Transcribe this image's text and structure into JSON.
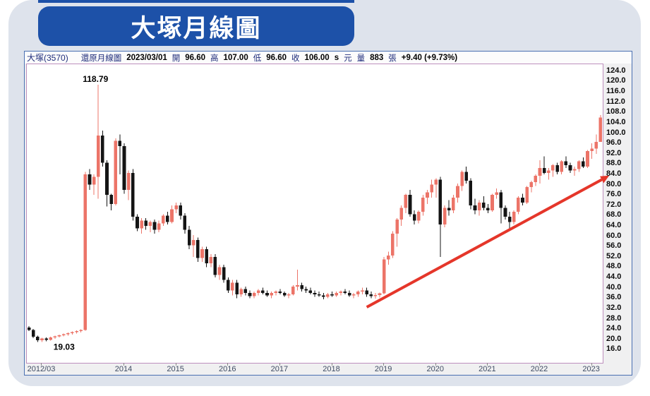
{
  "title": "大塚月線圖",
  "info_bar": {
    "stock": "大塚(3570)",
    "chart_type": "還原月線圖",
    "date": "2023/03/01",
    "open_label": "開",
    "open": "96.60",
    "high_label": "高",
    "high": "107.00",
    "low_label": "低",
    "low": "96.60",
    "close_label": "收",
    "close": "106.00",
    "close_flag": "s",
    "currency_label": "元",
    "volume_label": "量",
    "volume": "883",
    "volume_unit": "張",
    "change": "+9.40 (+9.73%)"
  },
  "chart_data": {
    "type": "candlestick",
    "title": "大塚(3570) 還原月線圖",
    "ylim": [
      10.9,
      126.7
    ],
    "grid": false,
    "colors": {
      "up": "#ec7468",
      "down": "#141414",
      "trend": "#e5362a"
    },
    "y_axis": {
      "labels": [
        "124.0",
        "120.0",
        "116.0",
        "112.0",
        "108.0",
        "104.0",
        "100.0",
        "96.0",
        "92.0",
        "88.0",
        "84.0",
        "80.0",
        "76.0",
        "72.0",
        "68.0",
        "64.0",
        "60.0",
        "56.0",
        "52.0",
        "48.0",
        "44.0",
        "40.0",
        "36.0",
        "32.0",
        "28.0",
        "24.0",
        "20.0",
        "16.0"
      ]
    },
    "x_axis": [
      {
        "label": "2012/03",
        "index": 3
      },
      {
        "label": "2014",
        "index": 22
      },
      {
        "label": "2015",
        "index": 34
      },
      {
        "label": "2016",
        "index": 46
      },
      {
        "label": "2017",
        "index": 58
      },
      {
        "label": "2018",
        "index": 70
      },
      {
        "label": "2019",
        "index": 82
      },
      {
        "label": "2020",
        "index": 94
      },
      {
        "label": "2021",
        "index": 106
      },
      {
        "label": "2022",
        "index": 118
      },
      {
        "label": "2023",
        "index": 130
      }
    ],
    "annotations": [
      {
        "text": "118.79",
        "index": 16,
        "price": 118.79,
        "position": "above",
        "anchor": "middle"
      },
      {
        "text": "19.03",
        "index": 5,
        "price": 19.03,
        "position": "below",
        "anchor": "start"
      }
    ],
    "trendline": {
      "from_index": 78,
      "from_price": 32.5,
      "to_index": 134,
      "to_price": 83.5,
      "width": 4,
      "arrow": true
    },
    "candles": [
      [
        "2012/03",
        24.6,
        25.2,
        23.2,
        23.6
      ],
      [
        "2012/04",
        23.6,
        24.0,
        20.5,
        21.0
      ],
      [
        "2012/05",
        21.0,
        21.5,
        19.03,
        19.6
      ],
      [
        "2012/06",
        19.6,
        20.6,
        19.0,
        20.3
      ],
      [
        "2012/07",
        20.3,
        20.8,
        19.3,
        19.8
      ],
      [
        "2012/08",
        19.8,
        21.0,
        19.5,
        20.7
      ],
      [
        "2012/09",
        20.7,
        21.5,
        20.2,
        21.2
      ],
      [
        "2012/10",
        21.2,
        21.9,
        20.7,
        21.6
      ],
      [
        "2012/11",
        21.6,
        22.3,
        21.1,
        22.0
      ],
      [
        "2012/12",
        22.0,
        22.7,
        21.5,
        22.4
      ],
      [
        "2013/01",
        22.4,
        23.1,
        21.9,
        22.8
      ],
      [
        "2013/02",
        22.8,
        23.5,
        22.3,
        23.2
      ],
      [
        "2013/03",
        23.2,
        23.9,
        22.7,
        23.6
      ],
      [
        "2013/04",
        23.6,
        85.0,
        23.3,
        84.0
      ],
      [
        "2013/05",
        84.0,
        86.0,
        78.0,
        80.0
      ],
      [
        "2013/06",
        80.0,
        84.0,
        76.0,
        83.0
      ],
      [
        "2013/07",
        83.0,
        118.79,
        74.5,
        99.0
      ],
      [
        "2013/08",
        99.0,
        101.0,
        87.0,
        88.5
      ],
      [
        "2013/09",
        88.5,
        89.5,
        71.5,
        76.0
      ],
      [
        "2013/10",
        76.0,
        76.5,
        70.0,
        72.5
      ],
      [
        "2013/11",
        72.5,
        98.0,
        72.0,
        97.0
      ],
      [
        "2013/12",
        97.0,
        99.5,
        84.0,
        95.0
      ],
      [
        "2014/01",
        95.0,
        96.0,
        76.5,
        78.0
      ],
      [
        "2014/02",
        78.0,
        85.5,
        74.0,
        84.5
      ],
      [
        "2014/03",
        84.5,
        86.0,
        66.0,
        67.5
      ],
      [
        "2014/04",
        67.5,
        68.5,
        62.0,
        63.0
      ],
      [
        "2014/05",
        63.0,
        67.0,
        61.0,
        66.0
      ],
      [
        "2014/06",
        66.0,
        67.0,
        62.5,
        64.0
      ],
      [
        "2014/07",
        64.0,
        66.0,
        61.5,
        65.5
      ],
      [
        "2014/08",
        65.5,
        66.5,
        61.0,
        62.5
      ],
      [
        "2014/09",
        62.5,
        66.0,
        61.5,
        65.0
      ],
      [
        "2014/10",
        65.0,
        68.5,
        64.0,
        68.0
      ],
      [
        "2014/11",
        68.0,
        69.5,
        64.5,
        65.5
      ],
      [
        "2014/12",
        65.5,
        72.0,
        65.0,
        70.5
      ],
      [
        "2015/01",
        70.5,
        73.0,
        69.0,
        72.0
      ],
      [
        "2015/02",
        72.0,
        73.0,
        66.5,
        68.0
      ],
      [
        "2015/03",
        68.0,
        69.0,
        61.0,
        62.5
      ],
      [
        "2015/04",
        62.5,
        64.0,
        55.0,
        56.5
      ],
      [
        "2015/05",
        56.5,
        60.5,
        52.0,
        58.5
      ],
      [
        "2015/06",
        58.5,
        59.5,
        50.0,
        51.5
      ],
      [
        "2015/07",
        51.5,
        56.0,
        50.0,
        55.0
      ],
      [
        "2015/08",
        55.0,
        56.0,
        48.0,
        49.5
      ],
      [
        "2015/09",
        49.5,
        53.0,
        48.0,
        52.0
      ],
      [
        "2015/10",
        52.0,
        53.0,
        44.0,
        45.0
      ],
      [
        "2015/11",
        45.0,
        49.0,
        43.0,
        48.0
      ],
      [
        "2015/12",
        48.0,
        49.0,
        42.0,
        43.0
      ],
      [
        "2016/01",
        43.0,
        44.0,
        38.0,
        39.0
      ],
      [
        "2016/02",
        39.0,
        43.0,
        37.0,
        42.0
      ],
      [
        "2016/03",
        42.0,
        43.0,
        36.0,
        37.5
      ],
      [
        "2016/04",
        37.5,
        40.0,
        36.5,
        39.5
      ],
      [
        "2016/05",
        39.5,
        40.5,
        37.0,
        38.0
      ],
      [
        "2016/06",
        38.0,
        39.0,
        36.0,
        36.8
      ],
      [
        "2016/07",
        36.8,
        38.5,
        36.0,
        38.0
      ],
      [
        "2016/08",
        38.0,
        39.5,
        37.0,
        39.0
      ],
      [
        "2016/09",
        39.0,
        40.0,
        37.5,
        38.0
      ],
      [
        "2016/10",
        38.0,
        39.0,
        36.5,
        37.0
      ],
      [
        "2016/11",
        37.0,
        38.5,
        36.0,
        38.0
      ],
      [
        "2016/12",
        38.0,
        39.0,
        37.0,
        38.5
      ],
      [
        "2017/01",
        38.5,
        39.5,
        37.5,
        38.0
      ],
      [
        "2017/02",
        38.0,
        38.5,
        36.5,
        37.0
      ],
      [
        "2017/03",
        37.0,
        38.0,
        36.0,
        37.5
      ],
      [
        "2017/04",
        37.5,
        41.0,
        37.0,
        40.5
      ],
      [
        "2017/05",
        40.5,
        47.0,
        39.0,
        41.0
      ],
      [
        "2017/06",
        41.0,
        42.0,
        38.5,
        39.5
      ],
      [
        "2017/07",
        39.5,
        40.5,
        38.0,
        39.0
      ],
      [
        "2017/08",
        39.0,
        40.0,
        37.5,
        38.0
      ],
      [
        "2017/09",
        38.0,
        39.0,
        36.5,
        37.5
      ],
      [
        "2017/10",
        37.5,
        38.5,
        36.5,
        37.0
      ],
      [
        "2017/11",
        37.0,
        38.0,
        35.5,
        36.5
      ],
      [
        "2017/12",
        36.5,
        38.0,
        36.0,
        37.5
      ],
      [
        "2018/01",
        37.5,
        38.5,
        36.5,
        37.0
      ],
      [
        "2018/02",
        37.0,
        38.5,
        36.5,
        38.0
      ],
      [
        "2018/03",
        38.0,
        39.0,
        37.0,
        38.5
      ],
      [
        "2018/04",
        38.5,
        39.5,
        37.5,
        38.0
      ],
      [
        "2018/05",
        38.0,
        39.0,
        36.5,
        37.0
      ],
      [
        "2018/06",
        37.0,
        38.0,
        36.0,
        37.5
      ],
      [
        "2018/07",
        37.5,
        39.0,
        36.5,
        38.5
      ],
      [
        "2018/08",
        38.5,
        40.0,
        37.5,
        39.0
      ],
      [
        "2018/09",
        39.0,
        40.0,
        36.5,
        37.5
      ],
      [
        "2018/10",
        37.5,
        38.5,
        36.0,
        36.8
      ],
      [
        "2018/11",
        36.8,
        38.0,
        35.8,
        37.2
      ],
      [
        "2018/12",
        37.2,
        38.2,
        36.2,
        37.8
      ],
      [
        "2019/01",
        37.8,
        52.0,
        37.5,
        51.0
      ],
      [
        "2019/02",
        51.0,
        54.0,
        49.0,
        52.5
      ],
      [
        "2019/03",
        52.5,
        62.0,
        51.5,
        61.0
      ],
      [
        "2019/04",
        61.0,
        67.0,
        56.0,
        66.5
      ],
      [
        "2019/05",
        66.5,
        72.0,
        64.0,
        71.0
      ],
      [
        "2019/06",
        71.0,
        76.5,
        69.0,
        76.0
      ],
      [
        "2019/07",
        76.0,
        78.0,
        67.5,
        68.5
      ],
      [
        "2019/08",
        68.5,
        70.0,
        64.5,
        66.0
      ],
      [
        "2019/09",
        66.0,
        70.0,
        65.0,
        69.5
      ],
      [
        "2019/10",
        69.5,
        76.0,
        68.0,
        75.0
      ],
      [
        "2019/11",
        75.0,
        78.0,
        72.5,
        77.0
      ],
      [
        "2019/12",
        77.0,
        82.0,
        75.0,
        80.0
      ],
      [
        "2020/01",
        80.0,
        82.5,
        75.0,
        82.0
      ],
      [
        "2020/02",
        82.0,
        83.0,
        52.0,
        64.5
      ],
      [
        "2020/03",
        64.5,
        72.0,
        63.5,
        71.0
      ],
      [
        "2020/04",
        71.0,
        74.0,
        68.0,
        70.0
      ],
      [
        "2020/05",
        70.0,
        76.0,
        69.0,
        75.0
      ],
      [
        "2020/06",
        75.0,
        80.5,
        73.0,
        79.5
      ],
      [
        "2020/07",
        79.5,
        85.5,
        77.5,
        85.0
      ],
      [
        "2020/08",
        85.0,
        87.0,
        80.5,
        81.5
      ],
      [
        "2020/09",
        81.5,
        82.5,
        70.5,
        72.0
      ],
      [
        "2020/10",
        72.0,
        74.5,
        68.5,
        70.0
      ],
      [
        "2020/11",
        70.0,
        74.0,
        68.0,
        73.0
      ],
      [
        "2020/12",
        73.0,
        75.5,
        70.0,
        71.0
      ],
      [
        "2021/01",
        71.0,
        72.5,
        69.0,
        70.0
      ],
      [
        "2021/02",
        70.0,
        76.5,
        69.5,
        76.0
      ],
      [
        "2021/03",
        76.0,
        78.5,
        74.5,
        77.0
      ],
      [
        "2021/04",
        77.0,
        78.0,
        65.0,
        71.0
      ],
      [
        "2021/05",
        71.0,
        72.0,
        66.5,
        67.5
      ],
      [
        "2021/06",
        67.5,
        69.5,
        62.5,
        65.5
      ],
      [
        "2021/07",
        65.5,
        70.0,
        64.5,
        69.5
      ],
      [
        "2021/08",
        69.5,
        75.5,
        68.5,
        75.0
      ],
      [
        "2021/09",
        75.0,
        76.5,
        72.0,
        73.0
      ],
      [
        "2021/10",
        73.0,
        79.5,
        72.5,
        79.0
      ],
      [
        "2021/11",
        79.0,
        81.5,
        77.0,
        81.0
      ],
      [
        "2021/12",
        81.0,
        84.0,
        79.5,
        83.5
      ],
      [
        "2022/01",
        83.5,
        89.5,
        80.5,
        86.5
      ],
      [
        "2022/02",
        86.5,
        91.0,
        84.0,
        84.5
      ],
      [
        "2022/03",
        84.5,
        86.5,
        82.0,
        85.5
      ],
      [
        "2022/04",
        85.5,
        88.0,
        83.0,
        87.5
      ],
      [
        "2022/05",
        87.5,
        88.5,
        84.0,
        85.0
      ],
      [
        "2022/06",
        85.0,
        89.5,
        84.0,
        89.0
      ],
      [
        "2022/07",
        89.0,
        91.0,
        86.5,
        87.5
      ],
      [
        "2022/08",
        87.5,
        88.5,
        84.5,
        85.5
      ],
      [
        "2022/09",
        85.5,
        87.0,
        83.5,
        86.0
      ],
      [
        "2022/10",
        86.0,
        89.5,
        85.0,
        89.0
      ],
      [
        "2022/11",
        89.0,
        90.5,
        86.5,
        87.0
      ],
      [
        "2022/12",
        87.0,
        93.5,
        86.5,
        93.0
      ],
      [
        "2023/01",
        93.0,
        96.0,
        90.0,
        94.0
      ],
      [
        "2023/02",
        94.0,
        99.5,
        92.0,
        96.6
      ],
      [
        "2023/03",
        96.6,
        107.0,
        96.6,
        106.0
      ]
    ]
  }
}
